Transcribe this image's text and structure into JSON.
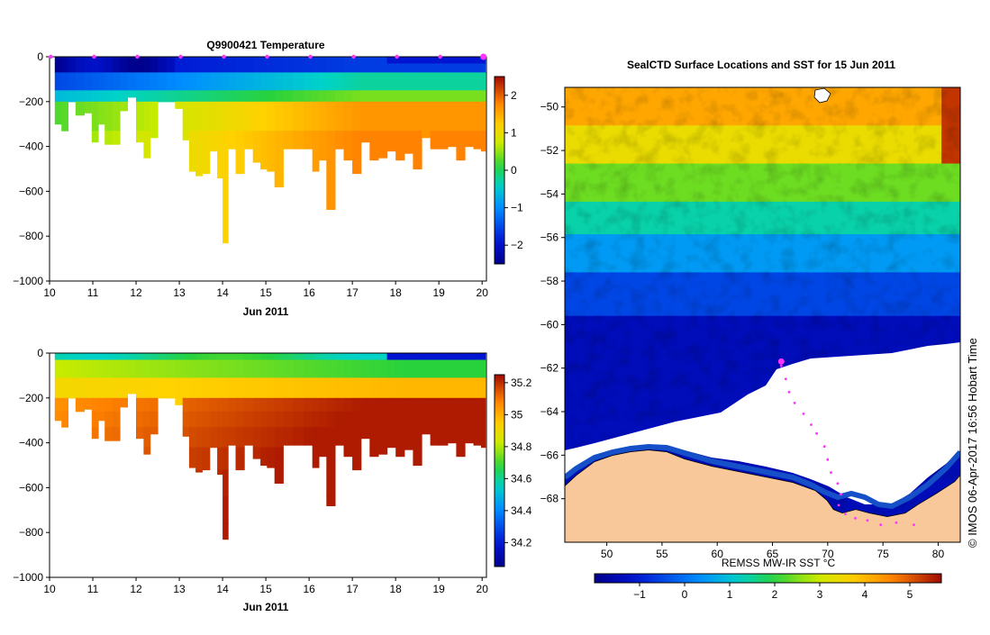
{
  "credit": "© IMOS 06-Apr-2017 16:56 Hobart Time",
  "colors": {
    "ocean_base": "#0b2a8a",
    "land": "#f8c89a",
    "ice": "#ffffff",
    "track": "#ff33ff"
  },
  "chart_data": [
    {
      "type": "heatmap",
      "id": "temperature-section",
      "title": "Q9900421  Temperature",
      "xlabel": "Jun 2011",
      "ylabel": "",
      "x_ticks": [
        "10",
        "11",
        "12",
        "13",
        "14",
        "15",
        "16",
        "17",
        "18",
        "19",
        "20"
      ],
      "y_ticks": [
        "0",
        "−200",
        "−400",
        "−600",
        "−800",
        "−1000"
      ],
      "x_range": [
        10,
        20.1
      ],
      "y_range": [
        -1000,
        0
      ],
      "colorbar": {
        "min": -2.5,
        "max": 2.5,
        "ticks": [
          "−2",
          "−1",
          "0",
          "1",
          "2"
        ],
        "tick_values": [
          -2,
          -1,
          0,
          1,
          2
        ]
      },
      "profile_marker_days": [
        10.0,
        11.0,
        12.0,
        13.0,
        14.0,
        15.0,
        16.0,
        17.0,
        18.0,
        19.0,
        20.0
      ],
      "profiles": [
        {
          "day": 10.2,
          "depth": 300
        },
        {
          "day": 10.35,
          "depth": 330
        },
        {
          "day": 10.5,
          "depth": 200
        },
        {
          "day": 10.7,
          "depth": 260
        },
        {
          "day": 10.9,
          "depth": 250
        },
        {
          "day": 11.05,
          "depth": 380
        },
        {
          "day": 11.2,
          "depth": 300
        },
        {
          "day": 11.35,
          "depth": 390
        },
        {
          "day": 11.55,
          "depth": 390
        },
        {
          "day": 11.7,
          "depth": 240
        },
        {
          "day": 11.9,
          "depth": 180
        },
        {
          "day": 12.1,
          "depth": 380
        },
        {
          "day": 12.25,
          "depth": 450
        },
        {
          "day": 12.4,
          "depth": 360
        },
        {
          "day": 12.6,
          "depth": 200
        },
        {
          "day": 12.8,
          "depth": 200
        },
        {
          "day": 13.0,
          "depth": 230
        },
        {
          "day": 13.15,
          "depth": 370
        },
        {
          "day": 13.3,
          "depth": 510
        },
        {
          "day": 13.45,
          "depth": 530
        },
        {
          "day": 13.6,
          "depth": 520
        },
        {
          "day": 13.8,
          "depth": 420
        },
        {
          "day": 13.95,
          "depth": 540
        },
        {
          "day": 14.05,
          "depth": 830
        },
        {
          "day": 14.2,
          "depth": 410
        },
        {
          "day": 14.4,
          "depth": 520
        },
        {
          "day": 14.6,
          "depth": 410
        },
        {
          "day": 14.8,
          "depth": 470
        },
        {
          "day": 14.95,
          "depth": 500
        },
        {
          "day": 15.1,
          "depth": 510
        },
        {
          "day": 15.3,
          "depth": 580
        },
        {
          "day": 15.5,
          "depth": 410
        },
        {
          "day": 15.75,
          "depth": 410
        },
        {
          "day": 16.0,
          "depth": 410
        },
        {
          "day": 16.15,
          "depth": 510
        },
        {
          "day": 16.3,
          "depth": 460
        },
        {
          "day": 16.5,
          "depth": 680
        },
        {
          "day": 16.7,
          "depth": 410
        },
        {
          "day": 16.9,
          "depth": 460
        },
        {
          "day": 17.1,
          "depth": 520
        },
        {
          "day": 17.3,
          "depth": 380
        },
        {
          "day": 17.5,
          "depth": 460
        },
        {
          "day": 17.7,
          "depth": 450
        },
        {
          "day": 17.9,
          "depth": 420
        },
        {
          "day": 18.1,
          "depth": 460
        },
        {
          "day": 18.3,
          "depth": 430
        },
        {
          "day": 18.5,
          "depth": 500
        },
        {
          "day": 18.7,
          "depth": 360
        },
        {
          "day": 18.9,
          "depth": 410
        },
        {
          "day": 19.1,
          "depth": 410
        },
        {
          "day": 19.3,
          "depth": 400
        },
        {
          "day": 19.5,
          "depth": 460
        },
        {
          "day": 19.7,
          "depth": 400
        },
        {
          "day": 19.9,
          "depth": 410
        },
        {
          "day": 20.05,
          "depth": 420
        }
      ]
    },
    {
      "type": "heatmap",
      "id": "salinity-section",
      "title": "",
      "xlabel": "Jun 2011",
      "ylabel": "",
      "x_ticks": [
        "10",
        "11",
        "12",
        "13",
        "14",
        "15",
        "16",
        "17",
        "18",
        "19",
        "20"
      ],
      "y_ticks": [
        "0",
        "−200",
        "−400",
        "−600",
        "−800",
        "−1000"
      ],
      "x_range": [
        10,
        20.1
      ],
      "y_range": [
        -1000,
        0
      ],
      "colorbar": {
        "min": 34.05,
        "max": 35.25,
        "ticks": [
          "34.2",
          "34.4",
          "34.6",
          "34.8",
          "35",
          "35.2"
        ],
        "tick_values": [
          34.2,
          34.4,
          34.6,
          34.8,
          35.0,
          35.2
        ]
      }
    },
    {
      "type": "heatmap",
      "id": "sst-map",
      "title": "SealCTD Surface Locations and SST for 15 Jun 2011",
      "colorbar_label": "REMSS MW-IR SST °C",
      "x_ticks": [
        "50",
        "55",
        "60",
        "65",
        "70",
        "75",
        "80"
      ],
      "x_tick_values": [
        50,
        55,
        60,
        65,
        70,
        75,
        80
      ],
      "y_ticks": [
        "−50",
        "−52",
        "−54",
        "−56",
        "−58",
        "−60",
        "−62",
        "−64",
        "−66",
        "−68"
      ],
      "y_tick_values": [
        -50,
        -52,
        -54,
        -56,
        -58,
        -60,
        -62,
        -64,
        -66,
        -68
      ],
      "lon_range": [
        46.2,
        82.0
      ],
      "lat_range": [
        -70.0,
        -49.1
      ],
      "colorbar": {
        "min": -2.0,
        "max": 5.7,
        "ticks": [
          "−1",
          "0",
          "1",
          "2",
          "3",
          "4",
          "5"
        ],
        "tick_values": [
          -1,
          0,
          1,
          2,
          3,
          4,
          5
        ]
      },
      "track": [
        [
          65.8,
          -61.9
        ],
        [
          66.2,
          -62.5
        ],
        [
          66.5,
          -63.1
        ],
        [
          67.0,
          -63.6
        ],
        [
          67.8,
          -64.1
        ],
        [
          68.5,
          -64.6
        ],
        [
          69.0,
          -65.0
        ],
        [
          69.7,
          -65.6
        ],
        [
          70.0,
          -66.2
        ],
        [
          70.3,
          -66.8
        ],
        [
          70.9,
          -67.3
        ],
        [
          71.2,
          -67.8
        ],
        [
          71.0,
          -68.3
        ],
        [
          71.6,
          -68.7
        ],
        [
          72.5,
          -68.9
        ],
        [
          73.6,
          -69.0
        ],
        [
          74.8,
          -69.2
        ],
        [
          76.2,
          -69.1
        ],
        [
          77.8,
          -69.2
        ]
      ],
      "seal_position": [
        65.8,
        -61.7
      ]
    }
  ]
}
